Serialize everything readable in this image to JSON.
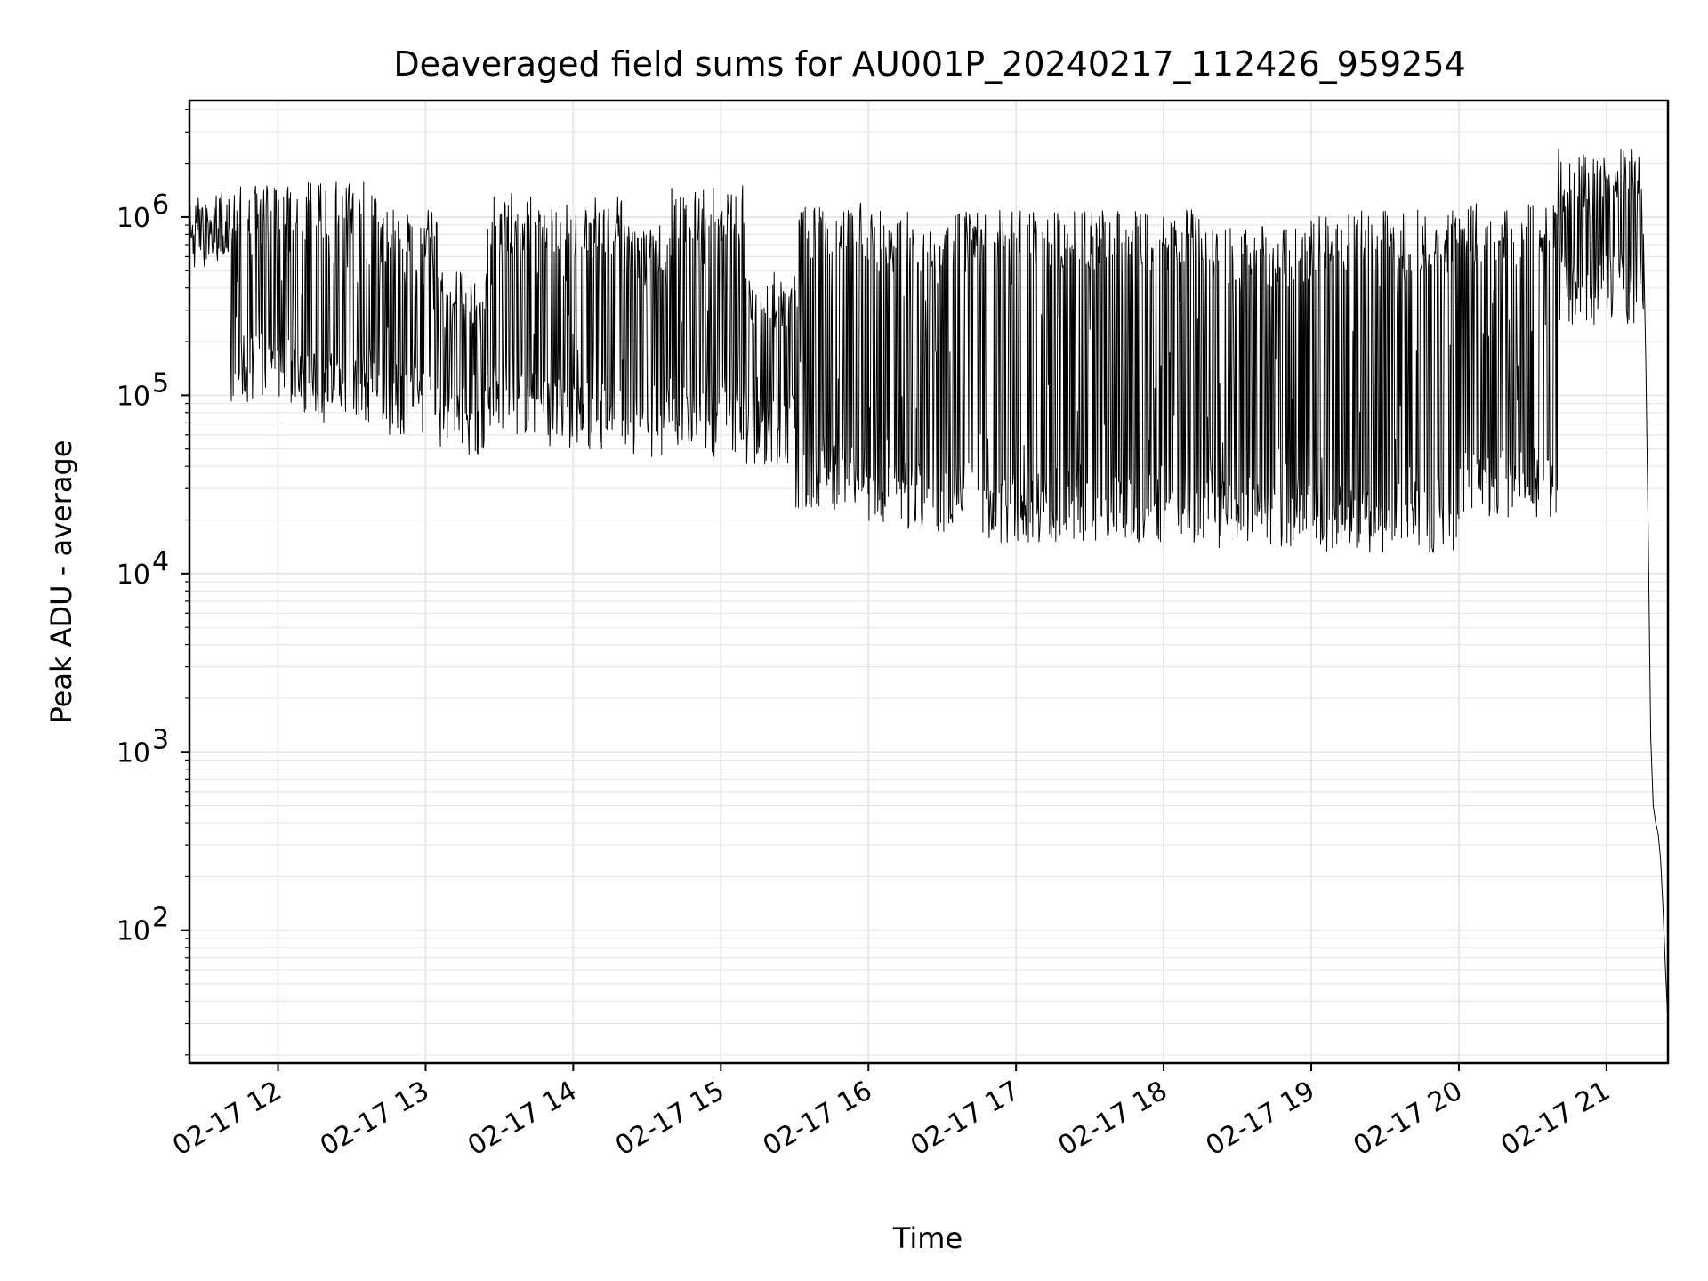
{
  "chart_data": {
    "type": "line",
    "title": "Deaveraged field sums for AU001P_20240217_112426_959254",
    "xlabel": "Time",
    "ylabel": "Peak ADU - average",
    "y_scale": "log",
    "ylim": [
      18,
      4500000
    ],
    "xlim": [
      "2024-02-17 11:24",
      "2024-02-17 21:25"
    ],
    "grid": true,
    "grid_color": "#e6e6e6",
    "line_color": "#000000",
    "x_ticks": [
      {
        "value": "2024-02-17 12:00",
        "label": "02-17 12"
      },
      {
        "value": "2024-02-17 13:00",
        "label": "02-17 13"
      },
      {
        "value": "2024-02-17 14:00",
        "label": "02-17 14"
      },
      {
        "value": "2024-02-17 15:00",
        "label": "02-17 15"
      },
      {
        "value": "2024-02-17 16:00",
        "label": "02-17 16"
      },
      {
        "value": "2024-02-17 17:00",
        "label": "02-17 17"
      },
      {
        "value": "2024-02-17 18:00",
        "label": "02-17 18"
      },
      {
        "value": "2024-02-17 19:00",
        "label": "02-17 19"
      },
      {
        "value": "2024-02-17 20:00",
        "label": "02-17 20"
      },
      {
        "value": "2024-02-17 21:00",
        "label": "02-17 21"
      }
    ],
    "y_ticks": [
      {
        "value": 100,
        "base": "10",
        "exp": "2"
      },
      {
        "value": 1000,
        "base": "10",
        "exp": "3"
      },
      {
        "value": 10000,
        "base": "10",
        "exp": "4"
      },
      {
        "value": 100000,
        "base": "10",
        "exp": "5"
      },
      {
        "value": 1000000,
        "base": "10",
        "exp": "6"
      }
    ],
    "series": [
      {
        "segments": [
          {
            "from": "2024-02-17 11:24",
            "to": "2024-02-17 11:40",
            "low": 500000,
            "high": 1400000
          },
          {
            "from": "2024-02-17 11:40",
            "to": "2024-02-17 12:10",
            "low": 90000,
            "high": 1500000
          },
          {
            "from": "2024-02-17 12:10",
            "to": "2024-02-17 12:40",
            "low": 70000,
            "high": 1600000
          },
          {
            "from": "2024-02-17 12:40",
            "to": "2024-02-17 13:05",
            "low": 60000,
            "high": 1100000
          },
          {
            "from": "2024-02-17 13:05",
            "to": "2024-02-17 13:25",
            "low": 45000,
            "high": 500000
          },
          {
            "from": "2024-02-17 13:25",
            "to": "2024-02-17 13:50",
            "low": 60000,
            "high": 1400000
          },
          {
            "from": "2024-02-17 13:50",
            "to": "2024-02-17 14:20",
            "low": 50000,
            "high": 1300000
          },
          {
            "from": "2024-02-17 14:20",
            "to": "2024-02-17 14:40",
            "low": 40000,
            "high": 900000
          },
          {
            "from": "2024-02-17 14:40",
            "to": "2024-02-17 15:10",
            "low": 45000,
            "high": 1500000
          },
          {
            "from": "2024-02-17 15:10",
            "to": "2024-02-17 15:30",
            "low": 40000,
            "high": 500000
          },
          {
            "from": "2024-02-17 15:30",
            "to": "2024-02-17 16:00",
            "low": 22000,
            "high": 1200000
          },
          {
            "from": "2024-02-17 16:00",
            "to": "2024-02-17 16:45",
            "low": 17000,
            "high": 1100000
          },
          {
            "from": "2024-02-17 16:45",
            "to": "2024-02-17 18:20",
            "low": 15000,
            "high": 1100000
          },
          {
            "from": "2024-02-17 18:20",
            "to": "2024-02-17 19:00",
            "low": 14000,
            "high": 900000
          },
          {
            "from": "2024-02-17 19:00",
            "to": "2024-02-17 20:00",
            "low": 13000,
            "high": 1100000
          },
          {
            "from": "2024-02-17 20:00",
            "to": "2024-02-17 20:40",
            "low": 20000,
            "high": 1200000
          },
          {
            "from": "2024-02-17 20:40",
            "to": "2024-02-17 21:15",
            "low": 250000,
            "high": 2400000
          }
        ],
        "points": [
          {
            "x": "2024-02-17 21:15",
            "y": 800000
          },
          {
            "x": "2024-02-17 21:16",
            "y": 150000
          },
          {
            "x": "2024-02-17 21:17",
            "y": 15000
          },
          {
            "x": "2024-02-17 21:18",
            "y": 1200
          },
          {
            "x": "2024-02-17 21:19",
            "y": 500
          },
          {
            "x": "2024-02-17 21:20",
            "y": 400
          },
          {
            "x": "2024-02-17 21:21",
            "y": 350
          },
          {
            "x": "2024-02-17 21:22",
            "y": 250
          },
          {
            "x": "2024-02-17 21:23",
            "y": 130
          },
          {
            "x": "2024-02-17 21:24",
            "y": 60
          },
          {
            "x": "2024-02-17 21:25",
            "y": 30
          }
        ]
      }
    ]
  }
}
